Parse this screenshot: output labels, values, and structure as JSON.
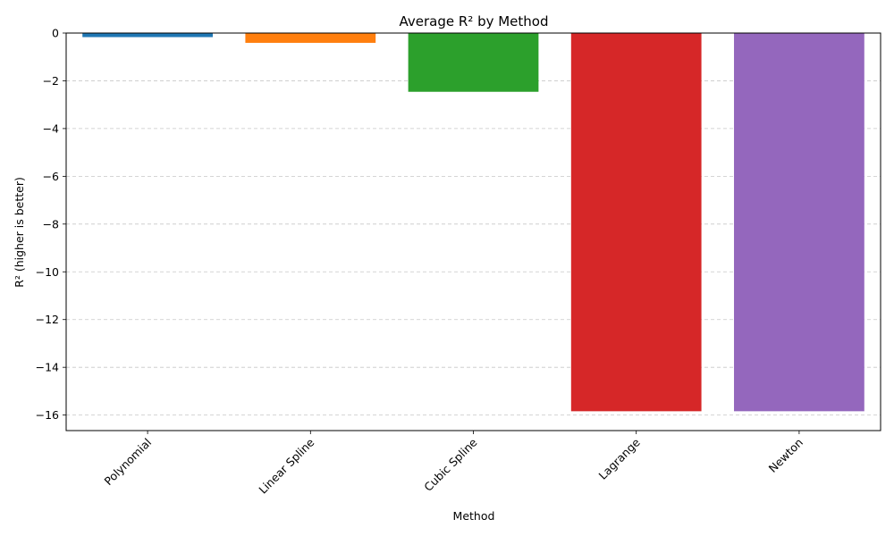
{
  "chart_data": {
    "type": "bar",
    "title": "Average R² by Method",
    "xlabel": "Method",
    "ylabel": "R² (higher is better)",
    "categories": [
      "Polynomial",
      "Linear Spline",
      "Cubic Spline",
      "Lagrange",
      "Newton"
    ],
    "values": [
      -0.17,
      -0.41,
      -2.46,
      -15.84,
      -15.84
    ],
    "colors": [
      "#1f77b4",
      "#ff7f0e",
      "#2ca02c",
      "#d62728",
      "#9467bd"
    ],
    "ylim": [
      -16.65,
      0
    ],
    "yticks": [
      0,
      -2,
      -4,
      -6,
      -8,
      -10,
      -12,
      -14,
      -16
    ],
    "ytick_labels": [
      "0",
      "−2",
      "−4",
      "−6",
      "−8",
      "−10",
      "−12",
      "−14",
      "−16"
    ],
    "grid": "y-dashed",
    "legend": "none"
  }
}
